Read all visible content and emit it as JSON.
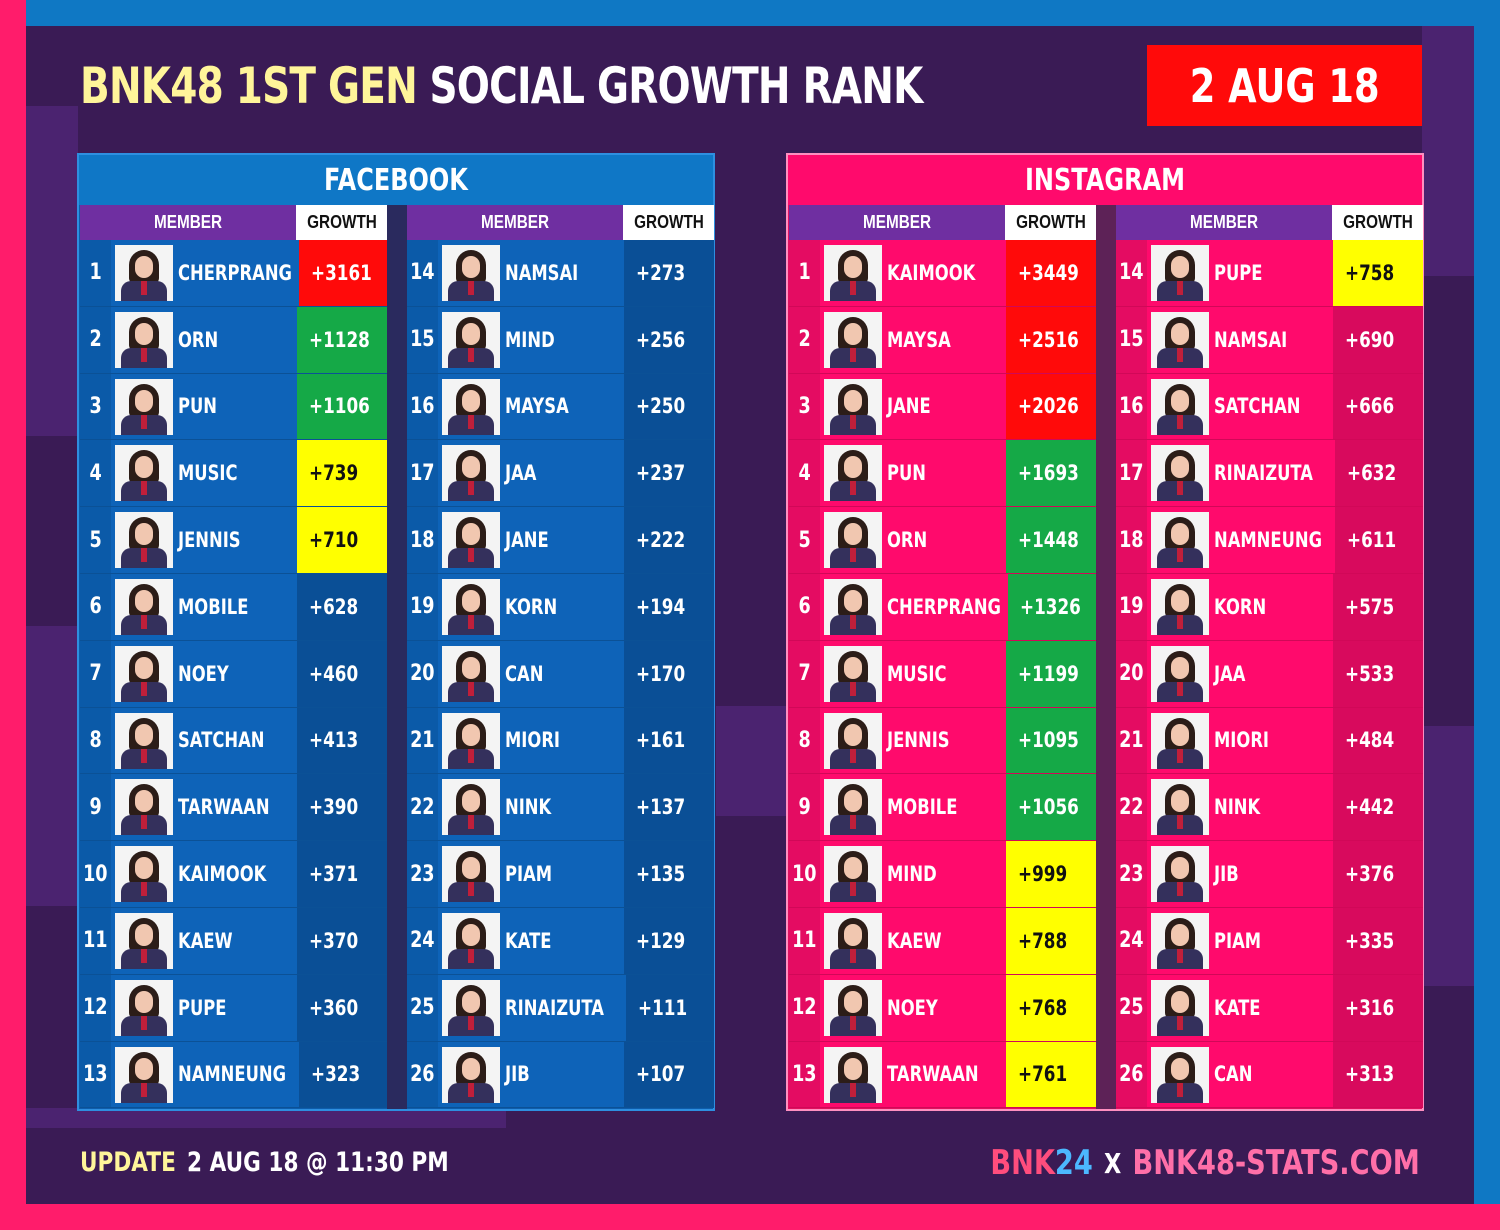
{
  "title": {
    "part1": "BNK48 1ST GEN",
    "part2": "SOCIAL  GROWTH  RANK"
  },
  "date": "2 AUG 18",
  "column_headers": {
    "member": "MEMBER",
    "growth": "GROWTH"
  },
  "facebook": {
    "title": "FACEBOOK",
    "left": [
      {
        "rank": "1",
        "name": "CHERPRANG",
        "growth": "+3161",
        "highlight": "red"
      },
      {
        "rank": "2",
        "name": "ORN",
        "growth": "+1128",
        "highlight": "green"
      },
      {
        "rank": "3",
        "name": "PUN",
        "growth": "+1106",
        "highlight": "green"
      },
      {
        "rank": "4",
        "name": "MUSIC",
        "growth": "+739",
        "highlight": "yellow"
      },
      {
        "rank": "5",
        "name": "JENNIS",
        "growth": "+710",
        "highlight": "yellow"
      },
      {
        "rank": "6",
        "name": "MOBILE",
        "growth": "+628",
        "highlight": "none"
      },
      {
        "rank": "7",
        "name": "NOEY",
        "growth": "+460",
        "highlight": "none"
      },
      {
        "rank": "8",
        "name": "SATCHAN",
        "growth": "+413",
        "highlight": "none"
      },
      {
        "rank": "9",
        "name": "TARWAAN",
        "growth": "+390",
        "highlight": "none"
      },
      {
        "rank": "10",
        "name": "KAIMOOK",
        "growth": "+371",
        "highlight": "none"
      },
      {
        "rank": "11",
        "name": "KAEW",
        "growth": "+370",
        "highlight": "none"
      },
      {
        "rank": "12",
        "name": "PUPE",
        "growth": "+360",
        "highlight": "none"
      },
      {
        "rank": "13",
        "name": "NAMNEUNG",
        "growth": "+323",
        "highlight": "none"
      }
    ],
    "right": [
      {
        "rank": "14",
        "name": "NAMSAI",
        "growth": "+273",
        "highlight": "none"
      },
      {
        "rank": "15",
        "name": "MIND",
        "growth": "+256",
        "highlight": "none"
      },
      {
        "rank": "16",
        "name": "MAYSA",
        "growth": "+250",
        "highlight": "none"
      },
      {
        "rank": "17",
        "name": "JAA",
        "growth": "+237",
        "highlight": "none"
      },
      {
        "rank": "18",
        "name": "JANE",
        "growth": "+222",
        "highlight": "none"
      },
      {
        "rank": "19",
        "name": "KORN",
        "growth": "+194",
        "highlight": "none"
      },
      {
        "rank": "20",
        "name": "CAN",
        "growth": "+170",
        "highlight": "none"
      },
      {
        "rank": "21",
        "name": "MIORI",
        "growth": "+161",
        "highlight": "none"
      },
      {
        "rank": "22",
        "name": "NINK",
        "growth": "+137",
        "highlight": "none"
      },
      {
        "rank": "23",
        "name": "PIAM",
        "growth": "+135",
        "highlight": "none"
      },
      {
        "rank": "24",
        "name": "KATE",
        "growth": "+129",
        "highlight": "none"
      },
      {
        "rank": "25",
        "name": "RINAIZUTA",
        "growth": "+111",
        "highlight": "none"
      },
      {
        "rank": "26",
        "name": "JIB",
        "growth": "+107",
        "highlight": "none"
      }
    ]
  },
  "instagram": {
    "title": "INSTAGRAM",
    "left": [
      {
        "rank": "1",
        "name": "KAIMOOK",
        "growth": "+3449",
        "highlight": "red"
      },
      {
        "rank": "2",
        "name": "MAYSA",
        "growth": "+2516",
        "highlight": "red"
      },
      {
        "rank": "3",
        "name": "JANE",
        "growth": "+2026",
        "highlight": "red"
      },
      {
        "rank": "4",
        "name": "PUN",
        "growth": "+1693",
        "highlight": "green"
      },
      {
        "rank": "5",
        "name": "ORN",
        "growth": "+1448",
        "highlight": "green"
      },
      {
        "rank": "6",
        "name": "CHERPRANG",
        "growth": "+1326",
        "highlight": "green"
      },
      {
        "rank": "7",
        "name": "MUSIC",
        "growth": "+1199",
        "highlight": "green"
      },
      {
        "rank": "8",
        "name": "JENNIS",
        "growth": "+1095",
        "highlight": "green"
      },
      {
        "rank": "9",
        "name": "MOBILE",
        "growth": "+1056",
        "highlight": "green"
      },
      {
        "rank": "10",
        "name": "MIND",
        "growth": "+999",
        "highlight": "yellow"
      },
      {
        "rank": "11",
        "name": "KAEW",
        "growth": "+788",
        "highlight": "yellow"
      },
      {
        "rank": "12",
        "name": "NOEY",
        "growth": "+768",
        "highlight": "yellow"
      },
      {
        "rank": "13",
        "name": "TARWAAN",
        "growth": "+761",
        "highlight": "yellow"
      }
    ],
    "right": [
      {
        "rank": "14",
        "name": "PUPE",
        "growth": "+758",
        "highlight": "yellow"
      },
      {
        "rank": "15",
        "name": "NAMSAI",
        "growth": "+690",
        "highlight": "none"
      },
      {
        "rank": "16",
        "name": "SATCHAN",
        "growth": "+666",
        "highlight": "none"
      },
      {
        "rank": "17",
        "name": "RINAIZUTA",
        "growth": "+632",
        "highlight": "none"
      },
      {
        "rank": "18",
        "name": "NAMNEUNG",
        "growth": "+611",
        "highlight": "none"
      },
      {
        "rank": "19",
        "name": "KORN",
        "growth": "+575",
        "highlight": "none"
      },
      {
        "rank": "20",
        "name": "JAA",
        "growth": "+533",
        "highlight": "none"
      },
      {
        "rank": "21",
        "name": "MIORI",
        "growth": "+484",
        "highlight": "none"
      },
      {
        "rank": "22",
        "name": "NINK",
        "growth": "+442",
        "highlight": "none"
      },
      {
        "rank": "23",
        "name": "JIB",
        "growth": "+376",
        "highlight": "none"
      },
      {
        "rank": "24",
        "name": "PIAM",
        "growth": "+335",
        "highlight": "none"
      },
      {
        "rank": "25",
        "name": "KATE",
        "growth": "+316",
        "highlight": "none"
      },
      {
        "rank": "26",
        "name": "CAN",
        "growth": "+313",
        "highlight": "none"
      }
    ]
  },
  "footer": {
    "update_label": "UPDATE",
    "update_time": "2 AUG 18 @ 11:30 PM",
    "brand_part1": "BNK",
    "brand_part2": "24",
    "brand_x": "X",
    "brand_site": "BNK48-STATS.COM"
  },
  "colors": {
    "facebook_panel": "#0e5cab",
    "instagram_panel": "#ff0a6c",
    "highlight_red": "#ff0a0a",
    "highlight_green": "#15a947",
    "highlight_yellow": "#ffff00",
    "title_yellow": "#fff59a"
  }
}
